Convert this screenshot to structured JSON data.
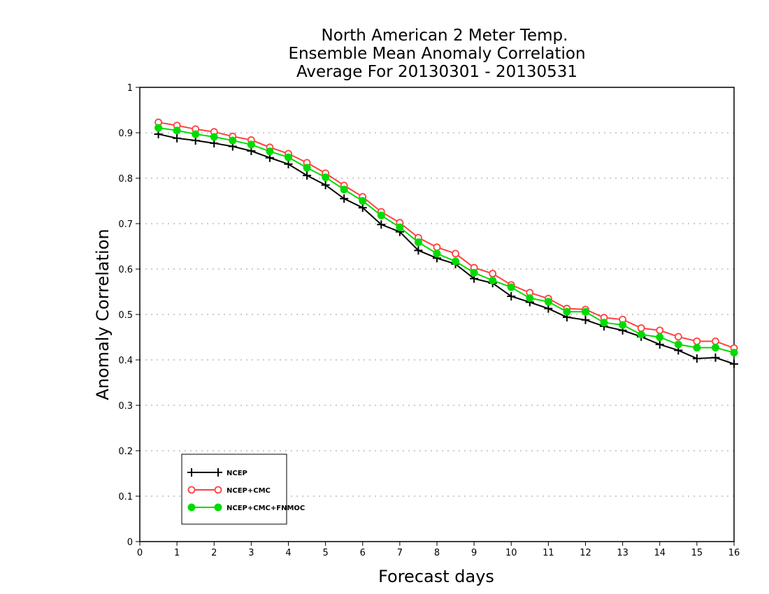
{
  "chart_data": {
    "type": "line",
    "title_lines": [
      "North American 2 Meter Temp.",
      "Ensemble Mean Anomaly Correlation",
      "Average For 20130301 - 20130531"
    ],
    "xlabel": "Forecast days",
    "ylabel": "Anomaly Correlation",
    "xlim": [
      0,
      16
    ],
    "ylim": [
      0,
      1
    ],
    "x_ticks": [
      "0",
      "1",
      "2",
      "3",
      "4",
      "5",
      "6",
      "7",
      "8",
      "9",
      "10",
      "11",
      "12",
      "13",
      "14",
      "15",
      "16"
    ],
    "y_ticks": [
      "0",
      "0.1",
      "0.2",
      "0.3",
      "0.4",
      "0.5",
      "0.6",
      "0.7",
      "0.8",
      "0.9",
      "1"
    ],
    "grid": "horizontal dotted",
    "legend_position": "bottom-left",
    "x": [
      0.5,
      1,
      1.5,
      2,
      2.5,
      3,
      3.5,
      4,
      4.5,
      5,
      5.5,
      6,
      6.5,
      7,
      7.5,
      8,
      8.5,
      9,
      9.5,
      10,
      10.5,
      11,
      11.5,
      12,
      12.5,
      13,
      13.5,
      14,
      14.5,
      15,
      15.5,
      16
    ],
    "series": [
      {
        "name": "NCEP",
        "color": "#000000",
        "marker": "plus",
        "values": [
          0.897,
          0.888,
          0.883,
          0.877,
          0.87,
          0.86,
          0.845,
          0.831,
          0.806,
          0.785,
          0.755,
          0.735,
          0.698,
          0.682,
          0.641,
          0.624,
          0.611,
          0.579,
          0.569,
          0.54,
          0.527,
          0.513,
          0.494,
          0.488,
          0.474,
          0.465,
          0.451,
          0.434,
          0.421,
          0.403,
          0.405,
          0.391
        ]
      },
      {
        "name": "NCEP+CMC",
        "color": "#ff4040",
        "marker": "open-circle",
        "values": [
          0.923,
          0.916,
          0.908,
          0.902,
          0.892,
          0.884,
          0.868,
          0.854,
          0.834,
          0.811,
          0.784,
          0.759,
          0.726,
          0.702,
          0.669,
          0.648,
          0.634,
          0.603,
          0.59,
          0.565,
          0.548,
          0.535,
          0.513,
          0.511,
          0.493,
          0.489,
          0.47,
          0.465,
          0.451,
          0.441,
          0.441,
          0.426
        ]
      },
      {
        "name": "NCEP+CMC+FNMOC",
        "color": "#00dc00",
        "marker": "filled-circle",
        "values": [
          0.911,
          0.905,
          0.897,
          0.891,
          0.883,
          0.874,
          0.859,
          0.846,
          0.823,
          0.802,
          0.775,
          0.75,
          0.718,
          0.692,
          0.659,
          0.634,
          0.617,
          0.592,
          0.575,
          0.56,
          0.536,
          0.528,
          0.506,
          0.506,
          0.482,
          0.477,
          0.456,
          0.45,
          0.434,
          0.427,
          0.427,
          0.416
        ]
      }
    ]
  }
}
